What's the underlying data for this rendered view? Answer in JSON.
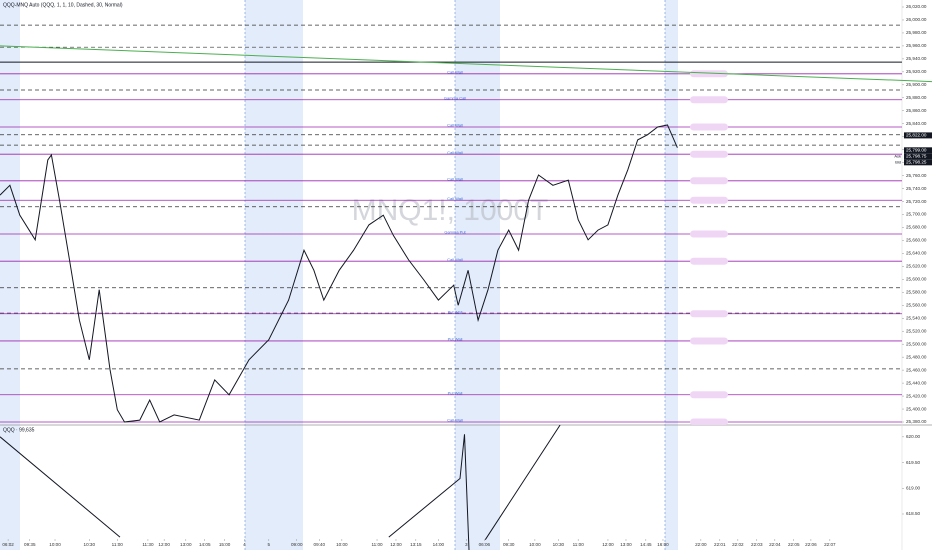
{
  "chart_data": [
    {
      "type": "line",
      "title": "QQQ-MNQ Auto (QQQ, 1, 1, 10, Dashed, 30, Normal)",
      "watermark": "MNQ1!, 1000T",
      "color": "#131722",
      "x": [
        0,
        1.1,
        2.2,
        3.9,
        5.3,
        5.7,
        6.6,
        7.7,
        8.8,
        9.9,
        11,
        12.2,
        13,
        13.8,
        15.5,
        16.6,
        17.7,
        19.3,
        22.1,
        23.8,
        25.4,
        27.6,
        29.8,
        32,
        33.7,
        34.8,
        35.9,
        37.6,
        39.2,
        40.9,
        42.5,
        43.6,
        45.3,
        47,
        48.6,
        50.3,
        50.8,
        51.9,
        53,
        54.1,
        55.2,
        56.4,
        57.5,
        58.6,
        59.7,
        61.3,
        63,
        64.1,
        65.2,
        66.3,
        67.4,
        68.5,
        69.6,
        70.7,
        71.8,
        72.9,
        74,
        75.1
      ],
      "values": [
        25730,
        25745,
        25699,
        25661,
        25784,
        25792,
        25722,
        25630,
        25537,
        25476,
        25584,
        25461,
        25399,
        25380,
        25383,
        25414,
        25380,
        25391,
        25383,
        25445,
        25422,
        25476,
        25507,
        25568,
        25645,
        25614,
        25568,
        25614,
        25645,
        25684,
        25699,
        25668,
        25630,
        25599,
        25568,
        25591,
        25560,
        25614,
        25537,
        25584,
        25645,
        25676,
        25645,
        25722,
        25761,
        25745,
        25753,
        25692,
        25661,
        25676,
        25684,
        25730,
        25769,
        25815,
        25823,
        25835,
        25838,
        25803
      ],
      "xlim": [
        0,
        100
      ],
      "ylim": [
        25375.4,
        26030.8
      ],
      "xticks": [
        {
          "value": 0.9,
          "label": "06:02"
        },
        {
          "value": 3.3,
          "label": "09:35"
        },
        {
          "value": 6.1,
          "label": "10:00"
        },
        {
          "value": 9.9,
          "label": "10:30"
        },
        {
          "value": 13,
          "label": "11:00"
        },
        {
          "value": 16.4,
          "label": "11:30"
        },
        {
          "value": 18.2,
          "label": "12:00"
        },
        {
          "value": 20.6,
          "label": "13:00"
        },
        {
          "value": 22.7,
          "label": "14:05"
        },
        {
          "value": 24.9,
          "label": "15:00"
        },
        {
          "value": 27.1,
          "label": "4"
        },
        {
          "value": 29.8,
          "label": "5"
        },
        {
          "value": 32.9,
          "label": "09:00"
        },
        {
          "value": 35.4,
          "label": "09:40"
        },
        {
          "value": 37.9,
          "label": "10:00"
        },
        {
          "value": 41.8,
          "label": "11:00"
        },
        {
          "value": 43.9,
          "label": "12:00"
        },
        {
          "value": 46.1,
          "label": "13:15"
        },
        {
          "value": 48.6,
          "label": "14:00"
        },
        {
          "value": 51.7,
          "label": "3"
        },
        {
          "value": 53.7,
          "label": "06:06"
        },
        {
          "value": 56.4,
          "label": "09:30"
        },
        {
          "value": 59.3,
          "label": "10:00"
        },
        {
          "value": 61.9,
          "label": "10:30"
        },
        {
          "value": 64.1,
          "label": "11:00"
        },
        {
          "value": 67.4,
          "label": "12:00"
        },
        {
          "value": 69.4,
          "label": "13:00"
        },
        {
          "value": 71.6,
          "label": "14:45"
        },
        {
          "value": 73.5,
          "label": "16:00"
        },
        {
          "value": 77.7,
          "label": "22:00"
        },
        {
          "value": 79.8,
          "label": "22:01"
        },
        {
          "value": 81.8,
          "label": "22:02"
        },
        {
          "value": 83.9,
          "label": "22:03"
        },
        {
          "value": 85.9,
          "label": "22:04"
        },
        {
          "value": 88,
          "label": "22:05"
        },
        {
          "value": 89.9,
          "label": "22:06"
        },
        {
          "value": 92,
          "label": "22:07"
        }
      ],
      "yticks": [
        {
          "value": 26020,
          "label": "26,020.00"
        },
        {
          "value": 26000,
          "label": "26,000.00"
        },
        {
          "value": 25980,
          "label": "25,980.00"
        },
        {
          "value": 25960,
          "label": "25,960.00"
        },
        {
          "value": 25940,
          "label": "25,940.00"
        },
        {
          "value": 25920,
          "label": "25,920.00"
        },
        {
          "value": 25900,
          "label": "25,900.00"
        },
        {
          "value": 25880,
          "label": "25,880.00"
        },
        {
          "value": 25860,
          "label": "25,860.00"
        },
        {
          "value": 25840,
          "label": "25,840.00"
        },
        {
          "value": 25820,
          "label": "25,820.00"
        },
        {
          "value": 25800,
          "label": "25,800.00"
        },
        {
          "value": 25780,
          "label": "25,780.00"
        },
        {
          "value": 25760,
          "label": "25,760.00"
        },
        {
          "value": 25740,
          "label": "25,740.00"
        },
        {
          "value": 25720,
          "label": "25,720.00"
        },
        {
          "value": 25700,
          "label": "25,700.00"
        },
        {
          "value": 25680,
          "label": "25,680.00"
        },
        {
          "value": 25660,
          "label": "25,660.00"
        },
        {
          "value": 25640,
          "label": "25,640.00"
        },
        {
          "value": 25620,
          "label": "25,620.00"
        },
        {
          "value": 25600,
          "label": "25,600.00"
        },
        {
          "value": 25580,
          "label": "25,580.00"
        },
        {
          "value": 25560,
          "label": "25,560.00"
        },
        {
          "value": 25540,
          "label": "25,540.00"
        },
        {
          "value": 25520,
          "label": "25,520.00"
        },
        {
          "value": 25500,
          "label": "25,500.00"
        },
        {
          "value": 25480,
          "label": "25,480.00"
        },
        {
          "value": 25460,
          "label": "25,460.00"
        },
        {
          "value": 25440,
          "label": "25,440.00"
        },
        {
          "value": 25420,
          "label": "25,420.00"
        },
        {
          "value": 25400,
          "label": "25,400.00"
        },
        {
          "value": 25380,
          "label": "25,380.00"
        }
      ],
      "levels": [
        {
          "value": 25917,
          "label": "Call Wall"
        },
        {
          "value": 25877,
          "label": "Gamma Call"
        },
        {
          "value": 25835,
          "label": "Call Wall"
        },
        {
          "value": 25793,
          "label": "Call Wall"
        },
        {
          "value": 25752,
          "label": "Call Wall"
        },
        {
          "value": 25722,
          "label": "Call Wall"
        },
        {
          "value": 25670,
          "label": "Gamma Put"
        },
        {
          "value": 25628,
          "label": "Call Wall"
        },
        {
          "value": 25547,
          "label": "Put Wall"
        },
        {
          "value": 25505,
          "label": "Put Wall"
        },
        {
          "value": 25422,
          "label": "Put Wall"
        },
        {
          "value": 25380,
          "label": "Call Wall"
        }
      ],
      "level_color": "#9c27b0",
      "dashed_levels": [
        25992,
        25958,
        25892,
        25823,
        25807,
        25712,
        25587,
        25548,
        25462
      ],
      "hlines": [
        {
          "value": 25935,
          "color": "#131722"
        }
      ],
      "trendlines": [
        {
          "values": [
            25960,
            25905
          ],
          "color": "#4caf50"
        }
      ],
      "price_tags": [
        {
          "value": 25822,
          "label": "25,822.00",
          "color": "#131722"
        },
        {
          "value": 25799,
          "label": "25,799.00",
          "color": "#131722"
        },
        {
          "name": "Ask",
          "value": 25798.75,
          "label": "25,798.75",
          "color": "#131722"
        },
        {
          "name": "Bid",
          "value": 25798.25,
          "label": "25,798.25",
          "color": "#131722"
        }
      ]
    },
    {
      "type": "line",
      "title": "QQQ · 99,635",
      "color": "#131722",
      "x": [
        0,
        13.3,
        30,
        43.1,
        51,
        51.5,
        52,
        53,
        53.8,
        62.1
      ],
      "values": [
        620,
        618.05,
        null,
        618.05,
        619.19,
        620.05,
        617.8,
        null,
        618,
        620.23
      ],
      "xlim": [
        0,
        100
      ],
      "ylim": [
        617.8,
        620.23
      ],
      "yticks": [
        {
          "value": 620,
          "label": "620.00"
        },
        {
          "value": 619.5,
          "label": "619.50"
        },
        {
          "value": 619,
          "label": "619.00"
        },
        {
          "value": 618.5,
          "label": "618.50"
        }
      ]
    }
  ]
}
